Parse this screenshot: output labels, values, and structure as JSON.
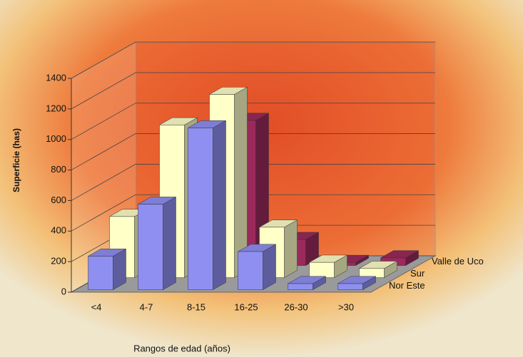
{
  "chart_data": {
    "type": "bar3d",
    "x_label": "Rangos de edad (años)",
    "y_label": "Superficie (has)",
    "categories": [
      "<4",
      "4-7",
      "8-15",
      "16-25",
      "26-30",
      ">30"
    ],
    "series": [
      {
        "name": "Nor Este",
        "color": "#8f8ff2",
        "values": [
          220,
          560,
          1060,
          250,
          40,
          40
        ]
      },
      {
        "name": "Sur",
        "color": "#ffffc8",
        "values": [
          400,
          1000,
          1200,
          330,
          100,
          60
        ]
      },
      {
        "name": "Valle de Uco",
        "color": "#9b2a5c",
        "values": [
          0,
          0,
          950,
          170,
          20,
          50
        ]
      }
    ],
    "ylim": [
      0,
      1400
    ],
    "yticks": [
      0,
      200,
      400,
      600,
      800,
      1000,
      1200,
      1400
    ],
    "grid": true
  }
}
